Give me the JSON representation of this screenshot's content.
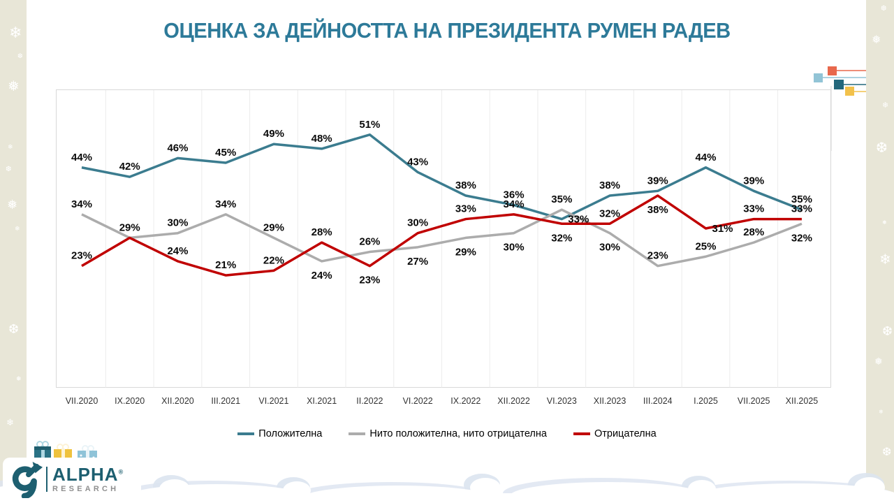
{
  "title": "ОЦЕНКА ЗА ДЕЙНОСТТА НА ПРЕЗИДЕНТА РУМЕН РАДЕВ",
  "chart_data": {
    "type": "line",
    "categories": [
      "VII.2020",
      "IX.2020",
      "XII.2020",
      "III.2021",
      "VI.2021",
      "XI.2021",
      "II.2022",
      "VI.2022",
      "IX.2022",
      "XII.2022",
      "VI.2023",
      "XII.2023",
      "III.2024",
      "I.2025",
      "VII.2025",
      "XII.2025"
    ],
    "series": [
      {
        "name": "Положителна",
        "color": "#3B7C8F",
        "values": [
          44,
          42,
          46,
          45,
          49,
          48,
          51,
          43,
          38,
          36,
          33,
          38,
          39,
          44,
          39,
          35
        ]
      },
      {
        "name": "Нито положителна, нито отрицателна",
        "color": "#ACACAC",
        "values": [
          34,
          29,
          30,
          34,
          29,
          24,
          26,
          27,
          29,
          30,
          35,
          30,
          23,
          25,
          28,
          32
        ]
      },
      {
        "name": "Отрицателна",
        "color": "#C00000",
        "values": [
          23,
          29,
          24,
          21,
          22,
          28,
          23,
          30,
          33,
          34,
          32,
          32,
          38,
          31,
          33,
          33
        ]
      }
    ],
    "value_suffix": "%",
    "ylim": [
      0,
      58
    ],
    "grid": "vertical-only",
    "legend_position": "bottom",
    "data_labels": "shown-bold"
  },
  "branding": {
    "logo_word1": "ALPHA",
    "logo_registered": "®",
    "logo_word2": "RESEARCH"
  },
  "accents": {
    "title_color": "#2D7A99",
    "decor_orange": "#E8684C",
    "decor_light_blue": "#92C4D6",
    "decor_dark_teal": "#23687C",
    "decor_yellow": "#F2C14B",
    "brand_teal": "#1D5F70"
  }
}
